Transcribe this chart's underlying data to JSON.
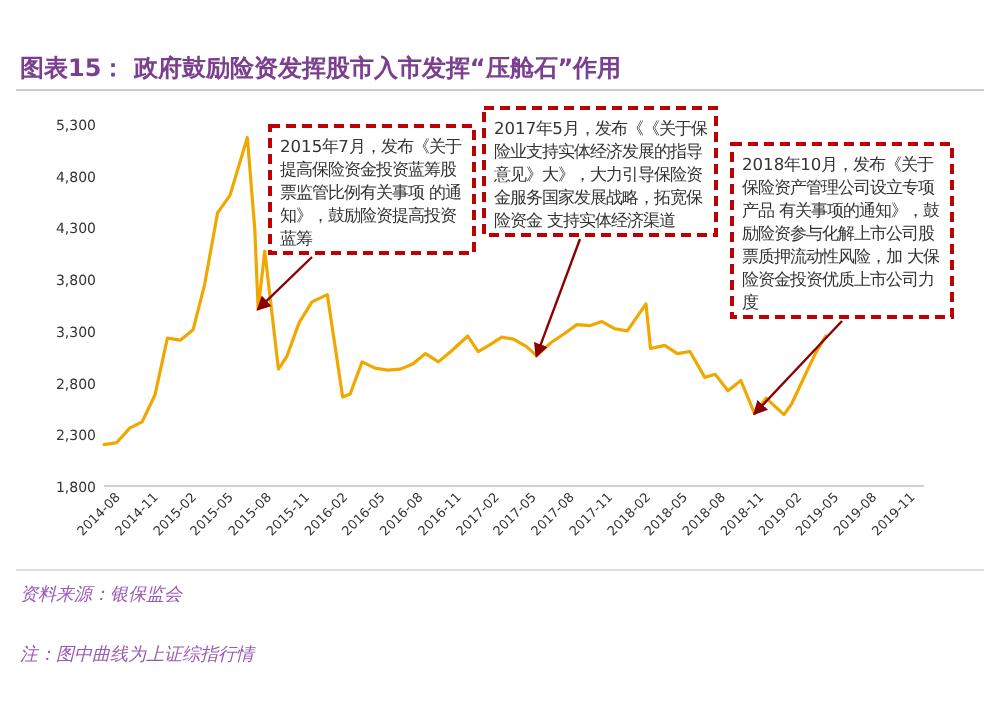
{
  "chart_data": {
    "type": "line",
    "title": "图表15：  政府鼓励险资发挥股市入市发挥“压舱石”作用",
    "x": [
      "2014-07-01",
      "2014-08-01",
      "2014-09-01",
      "2014-10-01",
      "2014-11-01",
      "2014-12-01",
      "2015-01-01",
      "2015-02-01",
      "2015-03-01",
      "2015-04-01",
      "2015-05-01",
      "2015-06-12",
      "2015-06-30",
      "2015-07-08",
      "2015-07-24",
      "2015-08-26",
      "2015-09-15",
      "2015-10-15",
      "2015-11-15",
      "2015-12-22",
      "2016-01-28",
      "2016-02-15",
      "2016-03-15",
      "2016-04-15",
      "2016-05-15",
      "2016-06-15",
      "2016-07-15",
      "2016-08-15",
      "2016-09-15",
      "2016-10-15",
      "2016-11-25",
      "2016-12-20",
      "2017-01-15",
      "2017-02-15",
      "2017-03-15",
      "2017-04-15",
      "2017-05-10",
      "2017-06-15",
      "2017-07-15",
      "2017-08-15",
      "2017-09-15",
      "2017-10-15",
      "2017-11-15",
      "2017-12-15",
      "2018-01-29",
      "2018-02-09",
      "2018-03-15",
      "2018-04-15",
      "2018-05-15",
      "2018-06-20",
      "2018-07-15",
      "2018-08-15",
      "2018-09-15",
      "2018-10-18",
      "2018-11-15",
      "2018-12-28",
      "2019-01-15",
      "2019-02-25",
      "2019-03-15",
      "2019-04-08"
    ],
    "series": [
      {
        "color": "#f0a800",
        "values": [
          2200,
          2220,
          2360,
          2420,
          2680,
          3230,
          3210,
          3310,
          3750,
          4440,
          4610,
          5170,
          4280,
          3510,
          4070,
          2930,
          3050,
          3380,
          3580,
          3650,
          2660,
          2690,
          3000,
          2940,
          2920,
          2930,
          2980,
          3080,
          3000,
          3100,
          3250,
          3100,
          3160,
          3240,
          3220,
          3150,
          3060,
          3190,
          3270,
          3360,
          3350,
          3390,
          3320,
          3300,
          3560,
          3130,
          3160,
          3080,
          3100,
          2850,
          2880,
          2720,
          2820,
          2500,
          2650,
          2490,
          2590,
          2940,
          3090,
          3250
        ]
      }
    ],
    "xlim": [
      "2014-07-01",
      "2019-12-01"
    ],
    "xticks": [
      {
        "value": "2014-08-01",
        "label": "2014-08"
      },
      {
        "value": "2014-11-01",
        "label": "2014-11"
      },
      {
        "value": "2015-02-01",
        "label": "2015-02"
      },
      {
        "value": "2015-05-01",
        "label": "2015-05"
      },
      {
        "value": "2015-08-01",
        "label": "2015-08"
      },
      {
        "value": "2015-11-01",
        "label": "2015-11"
      },
      {
        "value": "2016-02-01",
        "label": "2016-02"
      },
      {
        "value": "2016-05-01",
        "label": "2016-05"
      },
      {
        "value": "2016-08-01",
        "label": "2016-08"
      },
      {
        "value": "2016-11-01",
        "label": "2016-11"
      },
      {
        "value": "2017-02-01",
        "label": "2017-02"
      },
      {
        "value": "2017-05-01",
        "label": "2017-05"
      },
      {
        "value": "2017-08-01",
        "label": "2017-08"
      },
      {
        "value": "2017-11-01",
        "label": "2017-11"
      },
      {
        "value": "2018-02-01",
        "label": "2018-02"
      },
      {
        "value": "2018-05-01",
        "label": "2018-05"
      },
      {
        "value": "2018-08-01",
        "label": "2018-08"
      },
      {
        "value": "2018-11-01",
        "label": "2018-11"
      },
      {
        "value": "2019-02-01",
        "label": "2019-02"
      },
      {
        "value": "2019-05-01",
        "label": "2019-05"
      },
      {
        "value": "2019-08-01",
        "label": "2019-08"
      },
      {
        "value": "2019-11-01",
        "label": "2019-11"
      }
    ],
    "ylim": [
      1800,
      5300
    ],
    "yticks": [
      {
        "value": 1800,
        "label": "1,800"
      },
      {
        "value": 2300,
        "label": "2,300"
      },
      {
        "value": 2800,
        "label": "2,800"
      },
      {
        "value": 3300,
        "label": "3,300"
      },
      {
        "value": 3800,
        "label": "3,800"
      },
      {
        "value": 4300,
        "label": "4,300"
      },
      {
        "value": 4800,
        "label": "4,800"
      },
      {
        "value": 5300,
        "label": "5,300"
      }
    ],
    "annotations": [
      {
        "text": "2015年7月，发布《关于提高保险资金投资蓝筹股票监管比例有关事项 的通知》，鼓励险资提高投资蓝筹",
        "x": "2015-07-08",
        "y": 3510
      },
      {
        "text": "2017年5月，发布《《关于保险业支持实体经济发展的指导意见》大》，大力引导保险资金服务国家发展战略，拓宽保险资金 支持实体经济渠道",
        "x": "2017-05-10",
        "y": 3060
      },
      {
        "text": "2018年10月，发布《关于保险资产管理公司设立专项产品 有关事项的通知》，鼓励险资参与化解上市公司股票质押流动性风险，加 大保险资金投资优质上市公司力度",
        "x": "2018-10-18",
        "y": 2500
      },
      "资料来源：银保监会",
      "注：图中曲线为上证综指行情"
    ]
  }
}
